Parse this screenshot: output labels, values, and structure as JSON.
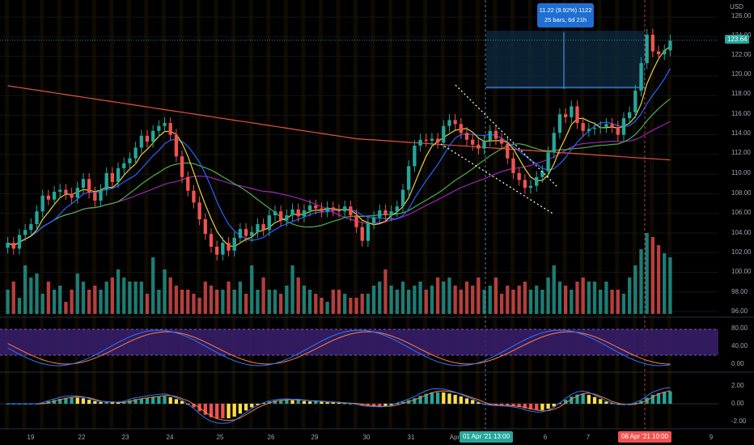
{
  "axis": {
    "currency": "USD",
    "price_ticks": [
      "126.00",
      "124.00",
      "122.00",
      "120.00",
      "118.00",
      "116.00",
      "114.00",
      "112.00",
      "110.00",
      "108.00",
      "106.00",
      "104.00",
      "102.00",
      "100.00",
      "98.00",
      "96.00"
    ],
    "stoch_ticks": [
      "80.00",
      "40.00",
      "0.00"
    ],
    "macd_ticks": [
      "2.00",
      "0.00",
      "-2.00"
    ],
    "time_ticks": [
      "19",
      "22",
      "23",
      "24",
      "25",
      "26",
      "29",
      "30",
      "31",
      "Apr",
      "6",
      "7",
      "9"
    ]
  },
  "last_price": "123.64",
  "measure_tooltip": {
    "line1": "11.22 (9.92%) 1122",
    "line2": "25 bars, 6d 21h"
  },
  "crosshair_labels": {
    "left": "01 Apr '21   13:00",
    "right": "08 Apr '21   10:00"
  },
  "colors": {
    "up": "#26a69a",
    "down": "#ef5350",
    "ema_fast": "#e6d43a",
    "ema_mid": "#2962ff",
    "ma_green": "#4caf50",
    "ma_purple": "#9c27b0",
    "ma_red": "#e0533f",
    "stoch_k": "#2979ff",
    "stoch_d": "#ff7f3f",
    "stoch_band": "#3b1e6e",
    "hist_pos": "#26a69a",
    "hist_neg": "#ef5350",
    "hist_fade": "#fde047",
    "tooltip_bg": "#1e6fd1",
    "crosshair_left_bg": "#26a69a",
    "crosshair_right_bg": "#ef5350"
  },
  "chart_data": {
    "type": "candlestick",
    "series": [
      {
        "name": "price",
        "ohlc_close": [
          103.0,
          102.4,
          103.8,
          104.3,
          104.9,
          106.2,
          107.8,
          107.4,
          108.2,
          108.4,
          108.0,
          107.6,
          108.6,
          109.5,
          108.1,
          107.3,
          108.4,
          110.1,
          109.2,
          110.6,
          111.1,
          111.6,
          112.7,
          113.9,
          113.3,
          114.4,
          114.9,
          115.2,
          114.0,
          111.8,
          109.7,
          108.3,
          107.1,
          105.4,
          103.9,
          102.6,
          101.8,
          103.0,
          102.2,
          103.5,
          104.4,
          103.7,
          104.1,
          104.9,
          104.3,
          105.8,
          106.2,
          105.3,
          105.8,
          106.4,
          105.7,
          106.3,
          106.8,
          106.5,
          106.2,
          106.6,
          106.3,
          106.2,
          106.7,
          105.8,
          104.6,
          103.2,
          105.0,
          105.6,
          106.3,
          105.8,
          106.2,
          106.7,
          108.4,
          110.8,
          112.9,
          113.5,
          113.4,
          113.6,
          113.2,
          114.9,
          115.5,
          115.1,
          114.2,
          113.5,
          113.0,
          112.6,
          113.4,
          114.4,
          113.6,
          113.1,
          111.6,
          110.1,
          109.4,
          108.6,
          108.8,
          109.7,
          110.3,
          112.2,
          114.2,
          116.1,
          115.8,
          116.9,
          115.2,
          114.4,
          114.6,
          114.7,
          114.8,
          115.1,
          114.8,
          114.0,
          115.7,
          116.3,
          118.5,
          121.3,
          124.2,
          122.5,
          122.2,
          122.6,
          123.6
        ]
      },
      {
        "name": "volume",
        "values": [
          30,
          40,
          20,
          60,
          45,
          50,
          25,
          40,
          30,
          35,
          15,
          30,
          50,
          40,
          30,
          35,
          30,
          40,
          45,
          55,
          45,
          40,
          40,
          40,
          25,
          70,
          30,
          55,
          45,
          35,
          30,
          30,
          25,
          20,
          40,
          35,
          30,
          30,
          40,
          30,
          40,
          25,
          60,
          30,
          45,
          30,
          30,
          25,
          35,
          60,
          45,
          35,
          30,
          25,
          20,
          15,
          30,
          30,
          25,
          20,
          20,
          25,
          25,
          35,
          40,
          55,
          35,
          30,
          40,
          30,
          35,
          40,
          30,
          35,
          45,
          40,
          45,
          35,
          30,
          40,
          35,
          45,
          30,
          35,
          45,
          25,
          35,
          30,
          35,
          40,
          30,
          35,
          30,
          45,
          60,
          40,
          35,
          30,
          40,
          45,
          40,
          40,
          30,
          40,
          30,
          30,
          25,
          45,
          60,
          80,
          100,
          95,
          85,
          75,
          70
        ]
      }
    ],
    "ylim": [
      96,
      127
    ]
  }
}
